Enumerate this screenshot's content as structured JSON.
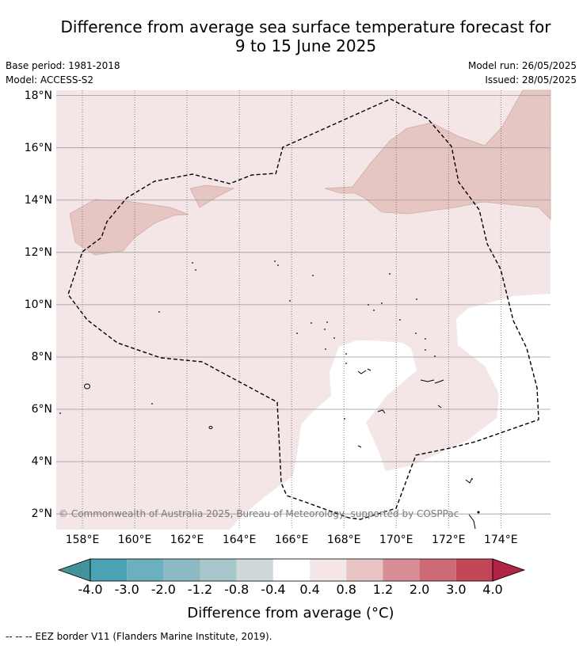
{
  "title_line1": "Difference from average sea surface temperature forecast for",
  "title_line2": "9 to 15 June 2025",
  "base_period": "Base period: 1981-2018",
  "model": "Model: ACCESS-S2",
  "model_run": "Model run: 26/05/2025",
  "issued": "Issued: 28/05/2025",
  "copyright": "© Commonwealth of Australia 2025, Bureau of Meteorology, supported by COSPPac",
  "colorbar_label": "Difference from average (°C)",
  "footnote": "--  --  -- EEZ border V11 (Flanders Marine Institute, 2019).",
  "map": {
    "lon_range": [
      157,
      175.9
    ],
    "lat_range": [
      1.4,
      18.2
    ],
    "lat_ticks": [
      {
        "value": 18,
        "label": "18°N"
      },
      {
        "value": 16,
        "label": "16°N"
      },
      {
        "value": 14,
        "label": "14°N"
      },
      {
        "value": 12,
        "label": "12°N"
      },
      {
        "value": 10,
        "label": "10°N"
      },
      {
        "value": 8,
        "label": "8°N"
      },
      {
        "value": 6,
        "label": "6°N"
      },
      {
        "value": 4,
        "label": "4°N"
      },
      {
        "value": 2,
        "label": "2°N"
      }
    ],
    "lon_ticks": [
      {
        "value": 158,
        "label": "158°E"
      },
      {
        "value": 160,
        "label": "160°E"
      },
      {
        "value": 162,
        "label": "162°E"
      },
      {
        "value": 164,
        "label": "164°E"
      },
      {
        "value": 166,
        "label": "166°E"
      },
      {
        "value": 168,
        "label": "168°E"
      },
      {
        "value": 170,
        "label": "170°E"
      },
      {
        "value": 172,
        "label": "172°E"
      },
      {
        "value": 174,
        "label": "174°E"
      }
    ],
    "colors": {
      "band_0_4_0_8": "#f4e6e6",
      "band_0_8_1_2": "#e6c6c3",
      "neutral": "#ffffff"
    }
  },
  "colorbar": {
    "ticks": [
      "-4.0",
      "-3.0",
      "-2.0",
      "-1.2",
      "-0.8",
      "-0.4",
      "0.4",
      "0.8",
      "1.2",
      "2.0",
      "3.0",
      "4.0"
    ],
    "colors": [
      "#44939c",
      "#4aa3b5",
      "#6cafbf",
      "#8cb9c4",
      "#a8c7cb",
      "#d0d8db",
      "#ffffff",
      "#f4e6e6",
      "#e7c4c3",
      "#d98e97",
      "#cc6a78",
      "#c14657",
      "#b22447"
    ]
  }
}
